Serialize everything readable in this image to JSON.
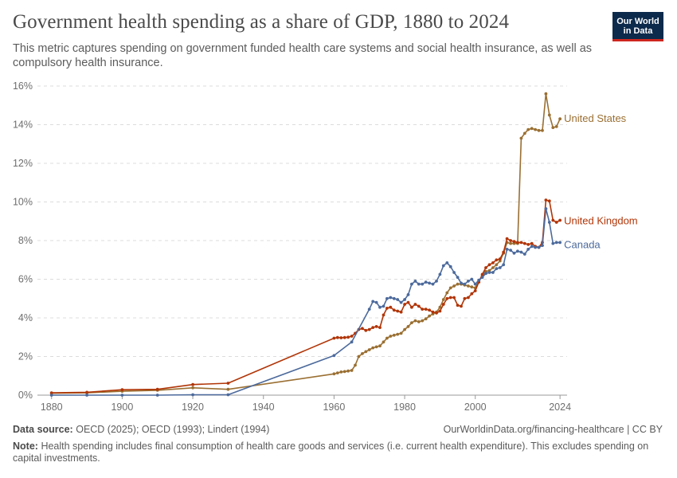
{
  "header": {
    "title": "Government health spending as a share of GDP, 1880 to 2024",
    "subtitle": "This metric captures spending on government funded health care systems and social health insurance, as well as compulsory health insurance.",
    "logo_line1": "Our World",
    "logo_line2": "in Data"
  },
  "footer": {
    "source_label": "Data source:",
    "source_text": "OECD (2025); OECD (1993); Lindert (1994)",
    "url": "OurWorldinData.org/financing-healthcare | CC BY",
    "note_label": "Note:",
    "note_text": "Health spending includes final consumption of health care goods and services (i.e. current health expenditure). This excludes spending on capital investments."
  },
  "chart_data": {
    "type": "line",
    "xlim": [
      1876,
      2026
    ],
    "ylim": [
      0,
      16
    ],
    "x_ticks": [
      1880,
      1900,
      1920,
      1940,
      1960,
      1980,
      2000,
      2024
    ],
    "x_tick_labels": [
      "1880",
      "1900",
      "1920",
      "1940",
      "1960",
      "1980",
      "2000",
      "2024"
    ],
    "y_ticks": [
      0,
      2,
      4,
      6,
      8,
      10,
      12,
      14,
      16
    ],
    "y_tick_labels": [
      "0%",
      "2%",
      "4%",
      "6%",
      "8%",
      "10%",
      "12%",
      "14%",
      "16%"
    ],
    "grid": "horizontal dashed",
    "legend": "line-end labels",
    "series": [
      {
        "name": "United States",
        "color": "#9a6f32",
        "points": [
          [
            1880,
            0.1
          ],
          [
            1890,
            0.12
          ],
          [
            1900,
            0.2
          ],
          [
            1910,
            0.25
          ],
          [
            1920,
            0.38
          ],
          [
            1930,
            0.3
          ],
          [
            1960,
            1.1
          ],
          [
            1961,
            1.15
          ],
          [
            1962,
            1.2
          ],
          [
            1963,
            1.22
          ],
          [
            1964,
            1.25
          ],
          [
            1965,
            1.28
          ],
          [
            1966,
            1.55
          ],
          [
            1967,
            2.0
          ],
          [
            1968,
            2.15
          ],
          [
            1969,
            2.25
          ],
          [
            1970,
            2.35
          ],
          [
            1971,
            2.45
          ],
          [
            1972,
            2.5
          ],
          [
            1973,
            2.55
          ],
          [
            1974,
            2.75
          ],
          [
            1975,
            2.95
          ],
          [
            1976,
            3.05
          ],
          [
            1977,
            3.1
          ],
          [
            1978,
            3.15
          ],
          [
            1979,
            3.2
          ],
          [
            1980,
            3.4
          ],
          [
            1981,
            3.55
          ],
          [
            1982,
            3.75
          ],
          [
            1983,
            3.85
          ],
          [
            1984,
            3.8
          ],
          [
            1985,
            3.85
          ],
          [
            1986,
            3.95
          ],
          [
            1987,
            4.1
          ],
          [
            1988,
            4.2
          ],
          [
            1989,
            4.3
          ],
          [
            1990,
            4.55
          ],
          [
            1991,
            4.95
          ],
          [
            1992,
            5.3
          ],
          [
            1993,
            5.55
          ],
          [
            1994,
            5.65
          ],
          [
            1995,
            5.75
          ],
          [
            1996,
            5.75
          ],
          [
            1997,
            5.7
          ],
          [
            1998,
            5.65
          ],
          [
            1999,
            5.6
          ],
          [
            2000,
            5.55
          ],
          [
            2001,
            5.9
          ],
          [
            2002,
            6.2
          ],
          [
            2003,
            6.4
          ],
          [
            2004,
            6.45
          ],
          [
            2005,
            6.6
          ],
          [
            2006,
            6.75
          ],
          [
            2007,
            6.95
          ],
          [
            2008,
            7.35
          ],
          [
            2009,
            7.9
          ],
          [
            2010,
            7.85
          ],
          [
            2011,
            7.85
          ],
          [
            2012,
            7.85
          ],
          [
            2013,
            13.3
          ],
          [
            2014,
            13.55
          ],
          [
            2015,
            13.75
          ],
          [
            2016,
            13.8
          ],
          [
            2017,
            13.75
          ],
          [
            2018,
            13.7
          ],
          [
            2019,
            13.7
          ],
          [
            2020,
            15.6
          ],
          [
            2021,
            14.5
          ],
          [
            2022,
            13.85
          ],
          [
            2023,
            13.9
          ],
          [
            2024,
            14.3
          ]
        ]
      },
      {
        "name": "United Kingdom",
        "color": "#b13507",
        "points": [
          [
            1880,
            0.12
          ],
          [
            1890,
            0.15
          ],
          [
            1900,
            0.28
          ],
          [
            1910,
            0.3
          ],
          [
            1920,
            0.55
          ],
          [
            1930,
            0.62
          ],
          [
            1960,
            2.95
          ],
          [
            1961,
            2.98
          ],
          [
            1962,
            2.97
          ],
          [
            1963,
            2.98
          ],
          [
            1964,
            3.0
          ],
          [
            1965,
            3.05
          ],
          [
            1966,
            3.2
          ],
          [
            1967,
            3.4
          ],
          [
            1968,
            3.45
          ],
          [
            1969,
            3.35
          ],
          [
            1970,
            3.4
          ],
          [
            1971,
            3.5
          ],
          [
            1972,
            3.55
          ],
          [
            1973,
            3.5
          ],
          [
            1974,
            4.15
          ],
          [
            1975,
            4.5
          ],
          [
            1976,
            4.55
          ],
          [
            1977,
            4.4
          ],
          [
            1978,
            4.35
          ],
          [
            1979,
            4.3
          ],
          [
            1980,
            4.7
          ],
          [
            1981,
            4.8
          ],
          [
            1982,
            4.55
          ],
          [
            1983,
            4.7
          ],
          [
            1984,
            4.6
          ],
          [
            1985,
            4.45
          ],
          [
            1986,
            4.45
          ],
          [
            1987,
            4.4
          ],
          [
            1988,
            4.3
          ],
          [
            1989,
            4.25
          ],
          [
            1990,
            4.35
          ],
          [
            1991,
            4.7
          ],
          [
            1992,
            5.0
          ],
          [
            1993,
            5.05
          ],
          [
            1994,
            5.05
          ],
          [
            1995,
            4.65
          ],
          [
            1996,
            4.6
          ],
          [
            1997,
            5.0
          ],
          [
            1998,
            5.05
          ],
          [
            1999,
            5.25
          ],
          [
            2000,
            5.4
          ],
          [
            2001,
            5.85
          ],
          [
            2002,
            6.25
          ],
          [
            2003,
            6.6
          ],
          [
            2004,
            6.75
          ],
          [
            2005,
            6.85
          ],
          [
            2006,
            7.0
          ],
          [
            2007,
            7.05
          ],
          [
            2008,
            7.4
          ],
          [
            2009,
            8.1
          ],
          [
            2010,
            8.0
          ],
          [
            2011,
            7.95
          ],
          [
            2012,
            7.9
          ],
          [
            2013,
            7.9
          ],
          [
            2014,
            7.85
          ],
          [
            2015,
            7.8
          ],
          [
            2016,
            7.85
          ],
          [
            2017,
            7.7
          ],
          [
            2018,
            7.65
          ],
          [
            2019,
            7.9
          ],
          [
            2020,
            10.1
          ],
          [
            2021,
            10.05
          ],
          [
            2022,
            9.05
          ],
          [
            2023,
            8.95
          ],
          [
            2024,
            9.05
          ]
        ]
      },
      {
        "name": "Canada",
        "color": "#4c6a9c",
        "points": [
          [
            1880,
            0.0
          ],
          [
            1890,
            0.0
          ],
          [
            1900,
            0.0
          ],
          [
            1910,
            0.0
          ],
          [
            1920,
            0.02
          ],
          [
            1930,
            0.02
          ],
          [
            1960,
            2.05
          ],
          [
            1965,
            2.75
          ],
          [
            1970,
            4.45
          ],
          [
            1971,
            4.85
          ],
          [
            1972,
            4.8
          ],
          [
            1973,
            4.55
          ],
          [
            1974,
            4.6
          ],
          [
            1975,
            5.0
          ],
          [
            1976,
            5.05
          ],
          [
            1977,
            5.0
          ],
          [
            1978,
            4.95
          ],
          [
            1979,
            4.8
          ],
          [
            1980,
            4.95
          ],
          [
            1981,
            5.2
          ],
          [
            1982,
            5.75
          ],
          [
            1983,
            5.9
          ],
          [
            1984,
            5.75
          ],
          [
            1985,
            5.75
          ],
          [
            1986,
            5.85
          ],
          [
            1987,
            5.8
          ],
          [
            1988,
            5.75
          ],
          [
            1989,
            5.9
          ],
          [
            1990,
            6.25
          ],
          [
            1991,
            6.7
          ],
          [
            1992,
            6.85
          ],
          [
            1993,
            6.65
          ],
          [
            1994,
            6.35
          ],
          [
            1995,
            6.1
          ],
          [
            1996,
            5.8
          ],
          [
            1997,
            5.75
          ],
          [
            1998,
            5.9
          ],
          [
            1999,
            6.0
          ],
          [
            2000,
            5.75
          ],
          [
            2001,
            5.95
          ],
          [
            2002,
            6.1
          ],
          [
            2003,
            6.3
          ],
          [
            2004,
            6.35
          ],
          [
            2005,
            6.35
          ],
          [
            2006,
            6.55
          ],
          [
            2007,
            6.6
          ],
          [
            2008,
            6.75
          ],
          [
            2009,
            7.55
          ],
          [
            2010,
            7.5
          ],
          [
            2011,
            7.35
          ],
          [
            2012,
            7.45
          ],
          [
            2013,
            7.4
          ],
          [
            2014,
            7.3
          ],
          [
            2015,
            7.55
          ],
          [
            2016,
            7.7
          ],
          [
            2017,
            7.65
          ],
          [
            2018,
            7.65
          ],
          [
            2019,
            7.75
          ],
          [
            2020,
            9.65
          ],
          [
            2021,
            8.95
          ],
          [
            2022,
            7.85
          ],
          [
            2023,
            7.9
          ],
          [
            2024,
            7.9
          ]
        ]
      }
    ]
  }
}
